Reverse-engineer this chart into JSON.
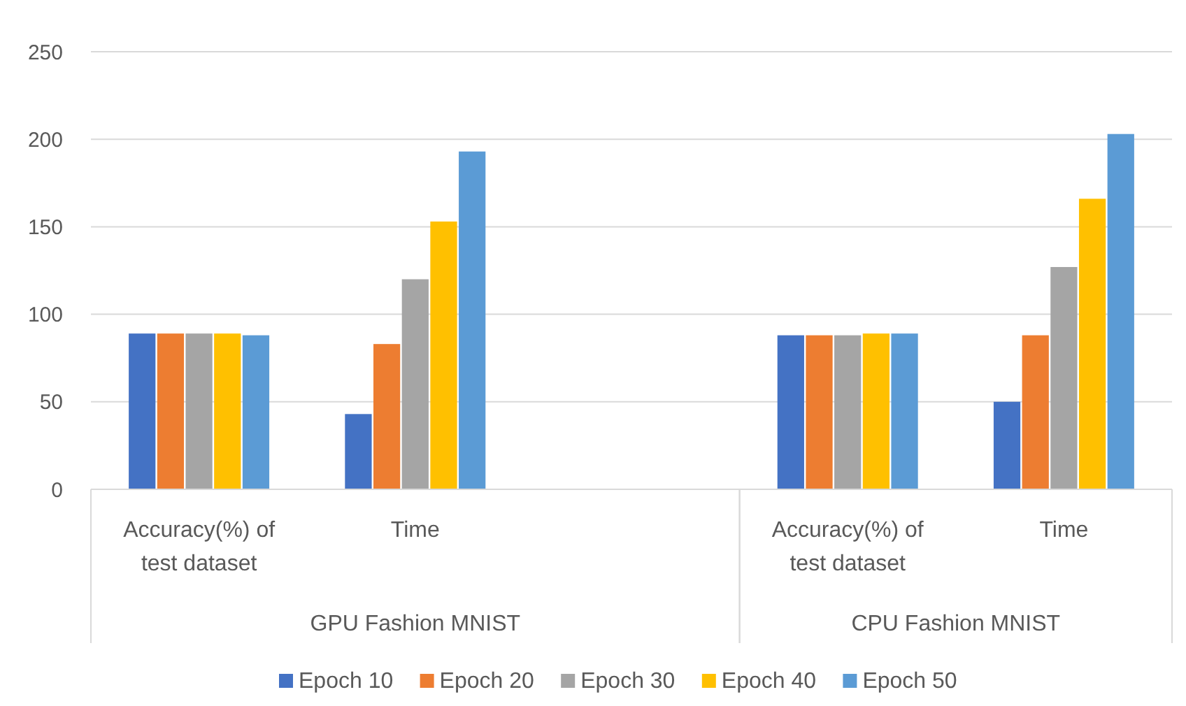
{
  "chart_data": {
    "type": "bar",
    "categories": [
      "Accuracy(%) of test dataset",
      "Time",
      null,
      "Accuracy(%) of test dataset",
      "Time"
    ],
    "series": [
      {
        "name": "Epoch 10",
        "color": "#4472c4",
        "values": [
          89,
          43,
          null,
          88,
          50
        ]
      },
      {
        "name": "Epoch 20",
        "color": "#ed7d31",
        "values": [
          89,
          83,
          null,
          88,
          88
        ]
      },
      {
        "name": "Epoch 30",
        "color": "#a5a5a5",
        "values": [
          89,
          120,
          null,
          88,
          127
        ]
      },
      {
        "name": "Epoch 40",
        "color": "#ffc000",
        "values": [
          89,
          153,
          null,
          89,
          166
        ]
      },
      {
        "name": "Epoch 50",
        "color": "#5b9bd5",
        "values": [
          88,
          193,
          null,
          89,
          203
        ]
      }
    ],
    "annotations": [
      "GPU Fashion MNIST",
      "CPU Fashion MNIST"
    ],
    "ylim": [
      0,
      250
    ],
    "yticks": [
      0,
      50,
      100,
      150,
      200,
      250
    ],
    "grid": "y",
    "legend": "bottom"
  }
}
